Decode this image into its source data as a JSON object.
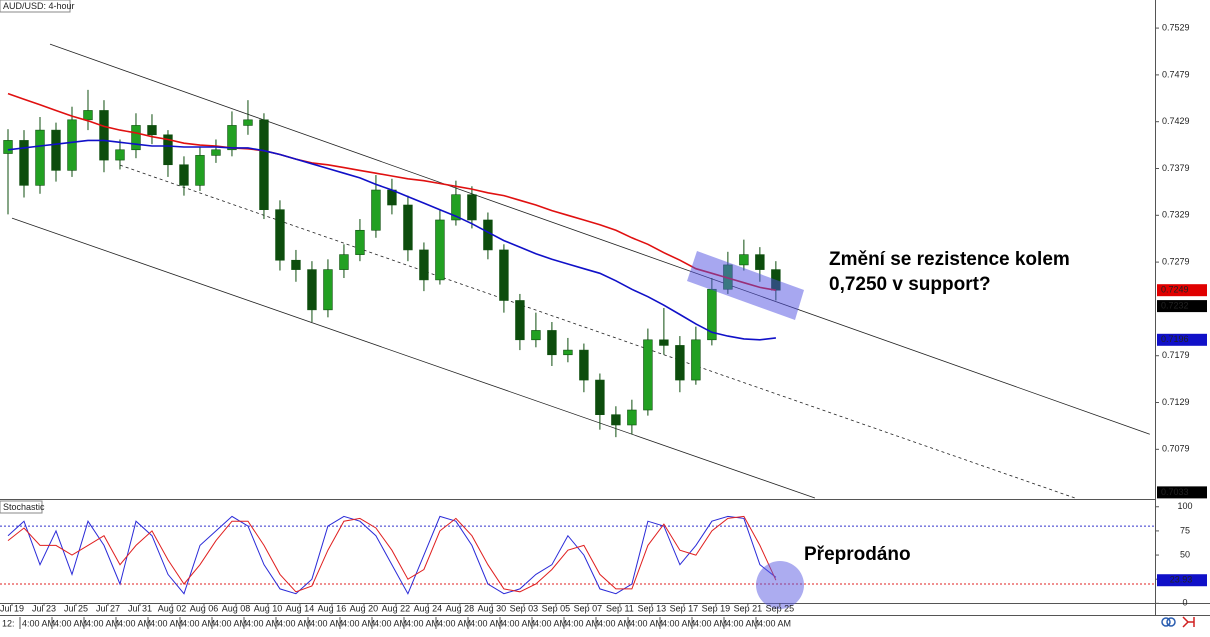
{
  "chart_data": [
    {
      "type": "candlestick",
      "title": "AUD/USD: 4-hour",
      "x": [
        0,
        1,
        2,
        3,
        4,
        5,
        6,
        7,
        8,
        9,
        10,
        11,
        12,
        13,
        14,
        15,
        16,
        17,
        18,
        19,
        20,
        21,
        22,
        23,
        24,
        25,
        26,
        27,
        28,
        29,
        30,
        31,
        32,
        33,
        34,
        35,
        36,
        37,
        38,
        39,
        40,
        41,
        42,
        43,
        44,
        45,
        46,
        47,
        48
      ],
      "open": [
        0.7395,
        0.7409,
        0.7361,
        0.742,
        0.7377,
        0.7431,
        0.7441,
        0.7388,
        0.7399,
        0.7425,
        0.7415,
        0.7383,
        0.7361,
        0.7393,
        0.7399,
        0.7425,
        0.7431,
        0.7335,
        0.7281,
        0.7271,
        0.7228,
        0.7271,
        0.7287,
        0.7313,
        0.7356,
        0.734,
        0.7292,
        0.726,
        0.7324,
        0.7351,
        0.7324,
        0.7292,
        0.7238,
        0.7196,
        0.7206,
        0.718,
        0.7185,
        0.7153,
        0.7116,
        0.7105,
        0.7121,
        0.7196,
        0.719,
        0.7153,
        0.7196,
        0.725,
        0.7276,
        0.7287,
        0.7271
      ],
      "high": [
        0.7421,
        0.742,
        0.7434,
        0.7428,
        0.7445,
        0.7463,
        0.7452,
        0.741,
        0.7438,
        0.7437,
        0.742,
        0.7392,
        0.7402,
        0.741,
        0.744,
        0.7452,
        0.7438,
        0.7345,
        0.7292,
        0.728,
        0.7282,
        0.7298,
        0.7325,
        0.7372,
        0.7368,
        0.735,
        0.73,
        0.7335,
        0.7366,
        0.736,
        0.7332,
        0.7298,
        0.7245,
        0.7225,
        0.7215,
        0.7198,
        0.7192,
        0.716,
        0.7125,
        0.7132,
        0.7208,
        0.723,
        0.72,
        0.721,
        0.7262,
        0.729,
        0.7303,
        0.7295,
        0.728
      ],
      "low": [
        0.733,
        0.7348,
        0.7352,
        0.7365,
        0.737,
        0.742,
        0.7375,
        0.7378,
        0.739,
        0.7405,
        0.737,
        0.735,
        0.7355,
        0.7385,
        0.7392,
        0.7415,
        0.7325,
        0.727,
        0.7258,
        0.7215,
        0.722,
        0.7262,
        0.728,
        0.7305,
        0.733,
        0.728,
        0.7248,
        0.7255,
        0.7318,
        0.7315,
        0.7282,
        0.7225,
        0.7185,
        0.7188,
        0.7168,
        0.7172,
        0.714,
        0.71,
        0.7092,
        0.7095,
        0.7115,
        0.718,
        0.714,
        0.7148,
        0.719,
        0.7245,
        0.727,
        0.7258,
        0.7238
      ],
      "close": [
        0.7409,
        0.7361,
        0.742,
        0.7377,
        0.7431,
        0.7441,
        0.7388,
        0.7399,
        0.7425,
        0.7415,
        0.7383,
        0.7361,
        0.7393,
        0.7399,
        0.7425,
        0.7431,
        0.7335,
        0.7281,
        0.7271,
        0.7228,
        0.7271,
        0.7287,
        0.7313,
        0.7356,
        0.734,
        0.7292,
        0.726,
        0.7324,
        0.7351,
        0.7324,
        0.7292,
        0.7238,
        0.7196,
        0.7206,
        0.718,
        0.7185,
        0.7153,
        0.7116,
        0.7105,
        0.7121,
        0.7196,
        0.719,
        0.7153,
        0.7196,
        0.725,
        0.7276,
        0.7287,
        0.7271,
        0.7249
      ],
      "up_color": "#22a022",
      "down_color": "#0d4d0d",
      "lines": [
        {
          "color": "#e01010",
          "values": [
            0.7459,
            0.7453,
            0.7447,
            0.7441,
            0.7435,
            0.743,
            0.7424,
            0.742,
            0.7417,
            0.7413,
            0.741,
            0.7406,
            0.7404,
            0.7403,
            0.7401,
            0.74,
            0.7398,
            0.7394,
            0.7389,
            0.7385,
            0.7383,
            0.738,
            0.7377,
            0.7374,
            0.7371,
            0.7368,
            0.7366,
            0.7363,
            0.736,
            0.7357,
            0.7353,
            0.735,
            0.7345,
            0.734,
            0.7334,
            0.7329,
            0.7324,
            0.7319,
            0.7313,
            0.7305,
            0.7298,
            0.7289,
            0.7281,
            0.7272,
            0.7267,
            0.7262,
            0.7257,
            0.7252,
            0.7249
          ]
        },
        {
          "color": "#1010c8",
          "values": [
            0.7399,
            0.7401,
            0.7403,
            0.7405,
            0.7407,
            0.7409,
            0.7409,
            0.7407,
            0.7405,
            0.7403,
            0.7403,
            0.7402,
            0.7402,
            0.7402,
            0.7401,
            0.7401,
            0.7398,
            0.7394,
            0.7389,
            0.7384,
            0.7379,
            0.7374,
            0.7369,
            0.7362,
            0.7356,
            0.7349,
            0.7342,
            0.7335,
            0.7328,
            0.732,
            0.7311,
            0.7302,
            0.7295,
            0.7288,
            0.7282,
            0.7277,
            0.7272,
            0.7267,
            0.7259,
            0.725,
            0.7242,
            0.7233,
            0.7223,
            0.7213,
            0.7204,
            0.72,
            0.7197,
            0.7196,
            0.7198
          ]
        }
      ],
      "trendlines": [
        {
          "x": [
            2.625,
            71.375
          ],
          "y": [
            0.75119,
            0.70952
          ],
          "dashed": false
        },
        {
          "x": [
            0.25,
            50.44
          ],
          "y": [
            0.7326,
            0.7027
          ],
          "dashed": false
        },
        {
          "x": [
            7,
            66.69
          ],
          "y": [
            0.73826,
            0.7027
          ],
          "dashed": true
        }
      ],
      "xlim": [
        -0.5,
        71.7
      ],
      "ylim": [
        0.7027,
        0.7559
      ],
      "yticks": [
        0.7529,
        0.7479,
        0.7429,
        0.7379,
        0.7329,
        0.7279,
        0.7179,
        0.7129,
        0.7079
      ],
      "price_markers": [
        {
          "value": 0.7249,
          "color": "#e00000"
        },
        {
          "value": 0.7232,
          "color": "#000000"
        },
        {
          "value": 0.7196,
          "color": "#1010c8"
        },
        {
          "value": 0.7033,
          "color": "#000000"
        }
      ],
      "annotations": [
        "Změní se rezistence kolem",
        "0,7250 v support?"
      ]
    },
    {
      "type": "line",
      "title": "Stochastic",
      "x": [
        0,
        1,
        2,
        3,
        4,
        5,
        6,
        7,
        8,
        9,
        10,
        11,
        12,
        13,
        14,
        15,
        16,
        17,
        18,
        19,
        20,
        21,
        22,
        23,
        24,
        25,
        26,
        27,
        28,
        29,
        30,
        31,
        32,
        33,
        34,
        35,
        36,
        37,
        38,
        39,
        40,
        41,
        42,
        43,
        44,
        45,
        46,
        47,
        48
      ],
      "series": [
        {
          "color": "#2b2bd8",
          "values": [
            70,
            85,
            40,
            75,
            30,
            85,
            60,
            20,
            85,
            70,
            30,
            10,
            60,
            75,
            90,
            80,
            40,
            15,
            10,
            25,
            80,
            90,
            85,
            70,
            40,
            10,
            50,
            90,
            85,
            60,
            20,
            10,
            15,
            30,
            40,
            70,
            50,
            15,
            10,
            20,
            85,
            80,
            40,
            60,
            85,
            90,
            88,
            40,
            27
          ]
        },
        {
          "color": "#e02020",
          "values": [
            65,
            78,
            60,
            60,
            50,
            60,
            70,
            40,
            60,
            75,
            45,
            20,
            40,
            65,
            85,
            85,
            60,
            30,
            12,
            18,
            55,
            85,
            88,
            78,
            55,
            25,
            35,
            75,
            88,
            70,
            40,
            15,
            12,
            20,
            35,
            55,
            60,
            30,
            15,
            15,
            60,
            82,
            55,
            50,
            75,
            88,
            90,
            60,
            23.93
          ]
        }
      ],
      "levels": [
        {
          "value": 80,
          "color": "#3333cc"
        },
        {
          "value": 20,
          "color": "#e02020"
        }
      ],
      "marker_color": "#1010c8",
      "xlim": [
        -0.5,
        71.7
      ],
      "ylim": [
        -10,
        107
      ],
      "yticks": [
        100,
        75,
        50,
        25,
        0
      ],
      "xticks": [
        {
          "value": 0.25,
          "label": "Jul 19"
        },
        {
          "value": 2.25,
          "label": "Jul 23"
        },
        {
          "value": 4.25,
          "label": "Jul 25"
        },
        {
          "value": 6.25,
          "label": "Jul 27"
        },
        {
          "value": 8.25,
          "label": "Jul 31"
        },
        {
          "value": 10.25,
          "label": "Aug 02"
        },
        {
          "value": 12.25,
          "label": "Aug 06"
        },
        {
          "value": 14.25,
          "label": "Aug 08"
        },
        {
          "value": 16.25,
          "label": "Aug 10"
        },
        {
          "value": 18.25,
          "label": "Aug 14"
        },
        {
          "value": 20.25,
          "label": "Aug 16"
        },
        {
          "value": 22.25,
          "label": "Aug 20"
        },
        {
          "value": 24.25,
          "label": "Aug 22"
        },
        {
          "value": 26.25,
          "label": "Aug 24"
        },
        {
          "value": 28.25,
          "label": "Aug 28"
        },
        {
          "value": 30.25,
          "label": "Aug 30"
        },
        {
          "value": 32.25,
          "label": "Sep 03"
        },
        {
          "value": 34.25,
          "label": "Sep 05"
        },
        {
          "value": 36.25,
          "label": "Sep 07"
        },
        {
          "value": 38.25,
          "label": "Sep 11"
        },
        {
          "value": 40.25,
          "label": "Sep 13"
        },
        {
          "value": 42.25,
          "label": "Sep 17"
        },
        {
          "value": 44.25,
          "label": "Sep 19"
        },
        {
          "value": 46.25,
          "label": "Sep 21"
        },
        {
          "value": 48.25,
          "label": "Sep 25"
        }
      ],
      "annotation": "Přeprodáno",
      "time_labels": [
        "12:",
        "4:00 AM",
        "4:00 AM",
        "4:00 AM",
        "4:00 AM",
        "4:00 AM",
        "4:00 AM",
        "4:00 AM",
        "4:00 AM",
        "4:00 AM",
        "4:00 AM",
        "4:00 AM",
        "4:00 AM",
        "4:00 AM",
        "4:00 AM",
        "4:00 AM",
        "4:00 AM",
        "4:00 AM",
        "4:00 AM",
        "4:00 AM",
        "4:00 AM",
        "4:00 AM",
        "4:00 AM",
        "4:00 AM",
        "4:00 AM"
      ]
    }
  ]
}
